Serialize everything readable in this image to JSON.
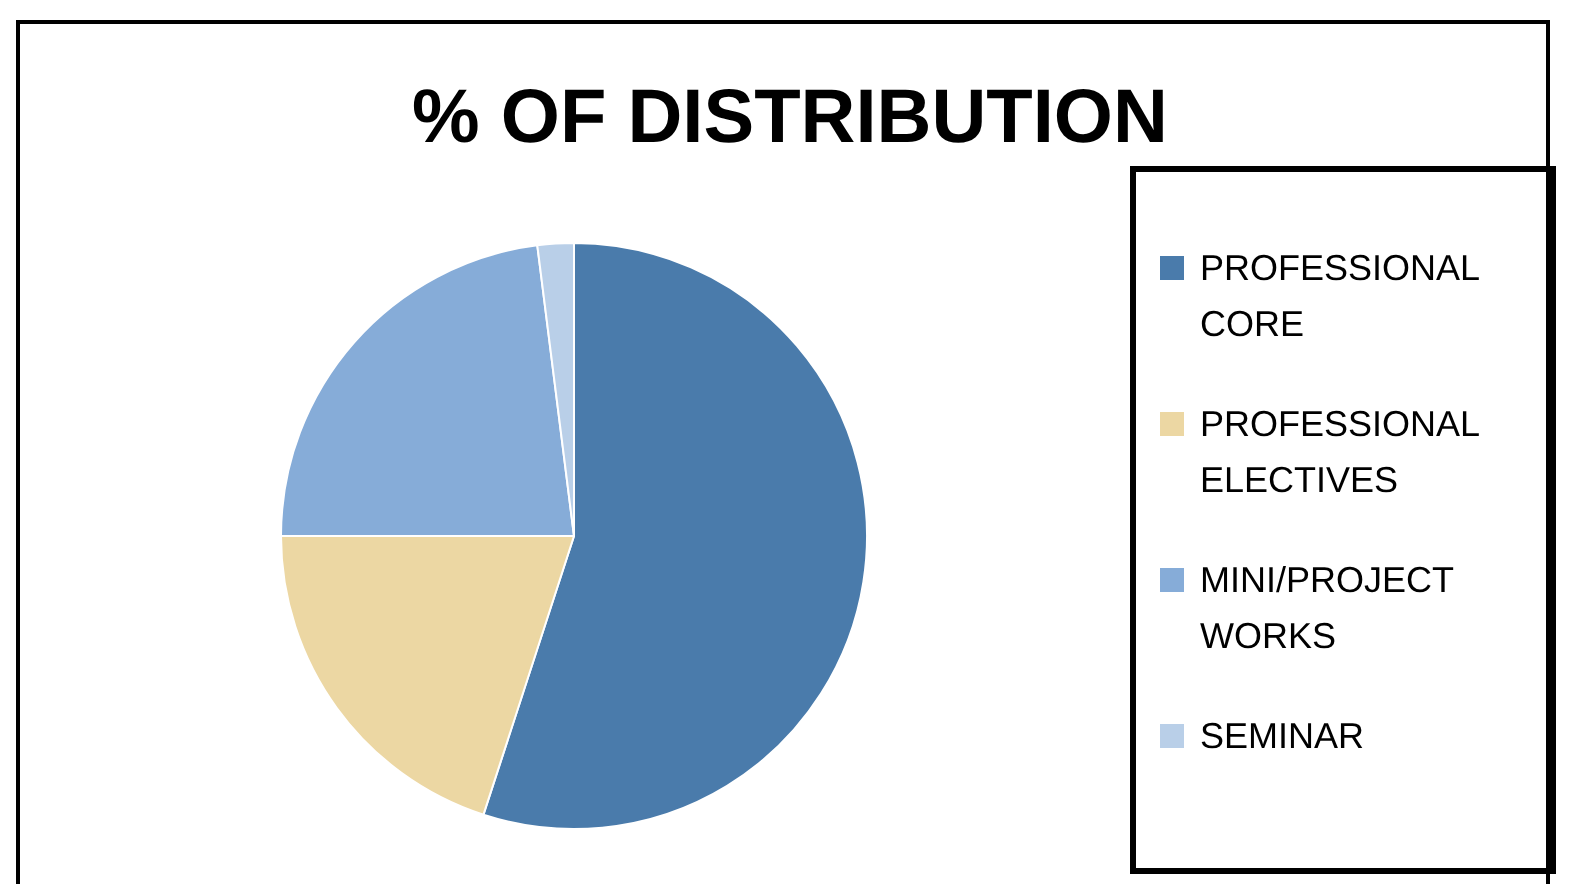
{
  "chart_data": {
    "type": "pie",
    "title": "% OF DISTRIBUTION",
    "categories": [
      "PROFESSIONAL CORE",
      "PROFESSIONAL ELECTIVES",
      "MINI/PROJECT WORKS",
      "SEMINAR"
    ],
    "values": [
      55,
      20,
      23,
      2
    ],
    "colors": [
      "#4a7bab",
      "#ecd7a3",
      "#86acd8",
      "#b9cfe8"
    ],
    "legend": "right"
  }
}
